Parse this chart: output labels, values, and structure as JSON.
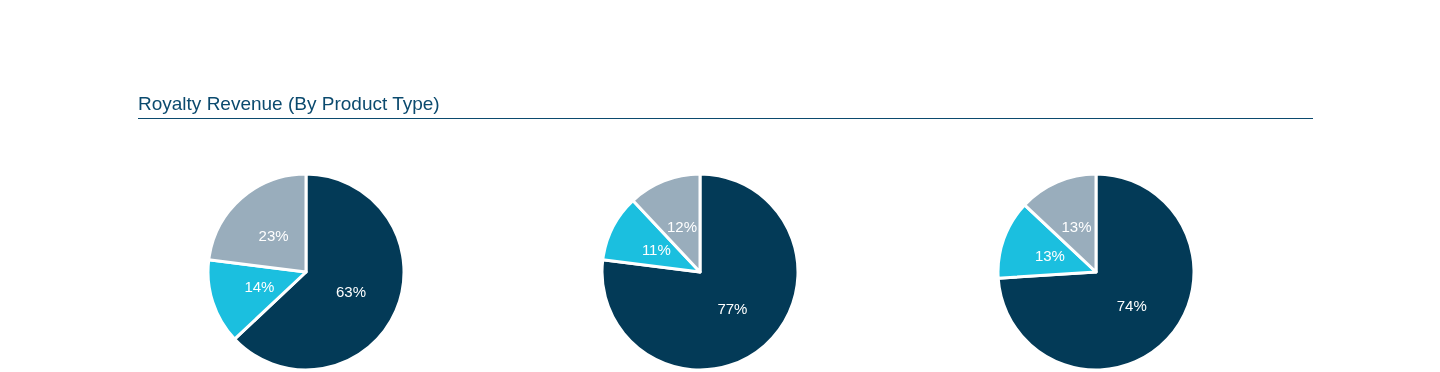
{
  "chart_data": [
    {
      "type": "pie",
      "title": "Royalty Revenue (By Product Type)",
      "categories": [
        null,
        null,
        null
      ],
      "values": [
        63,
        14,
        23
      ],
      "value_labels": [
        "63%",
        "14%",
        "23%"
      ],
      "colors": [
        "#033a57",
        "#1bbfdf",
        "#99adbc"
      ]
    },
    {
      "type": "pie",
      "categories": [
        null,
        null,
        null
      ],
      "values": [
        77,
        11,
        12
      ],
      "value_labels": [
        "77%",
        "11%",
        "12%"
      ],
      "colors": [
        "#033a57",
        "#1bbfdf",
        "#99adbc"
      ]
    },
    {
      "type": "pie",
      "categories": [
        null,
        null,
        null
      ],
      "values": [
        74,
        13,
        13
      ],
      "value_labels": [
        "74%",
        "13%",
        "13%"
      ],
      "colors": [
        "#033a57",
        "#1bbfdf",
        "#99adbc"
      ]
    }
  ]
}
